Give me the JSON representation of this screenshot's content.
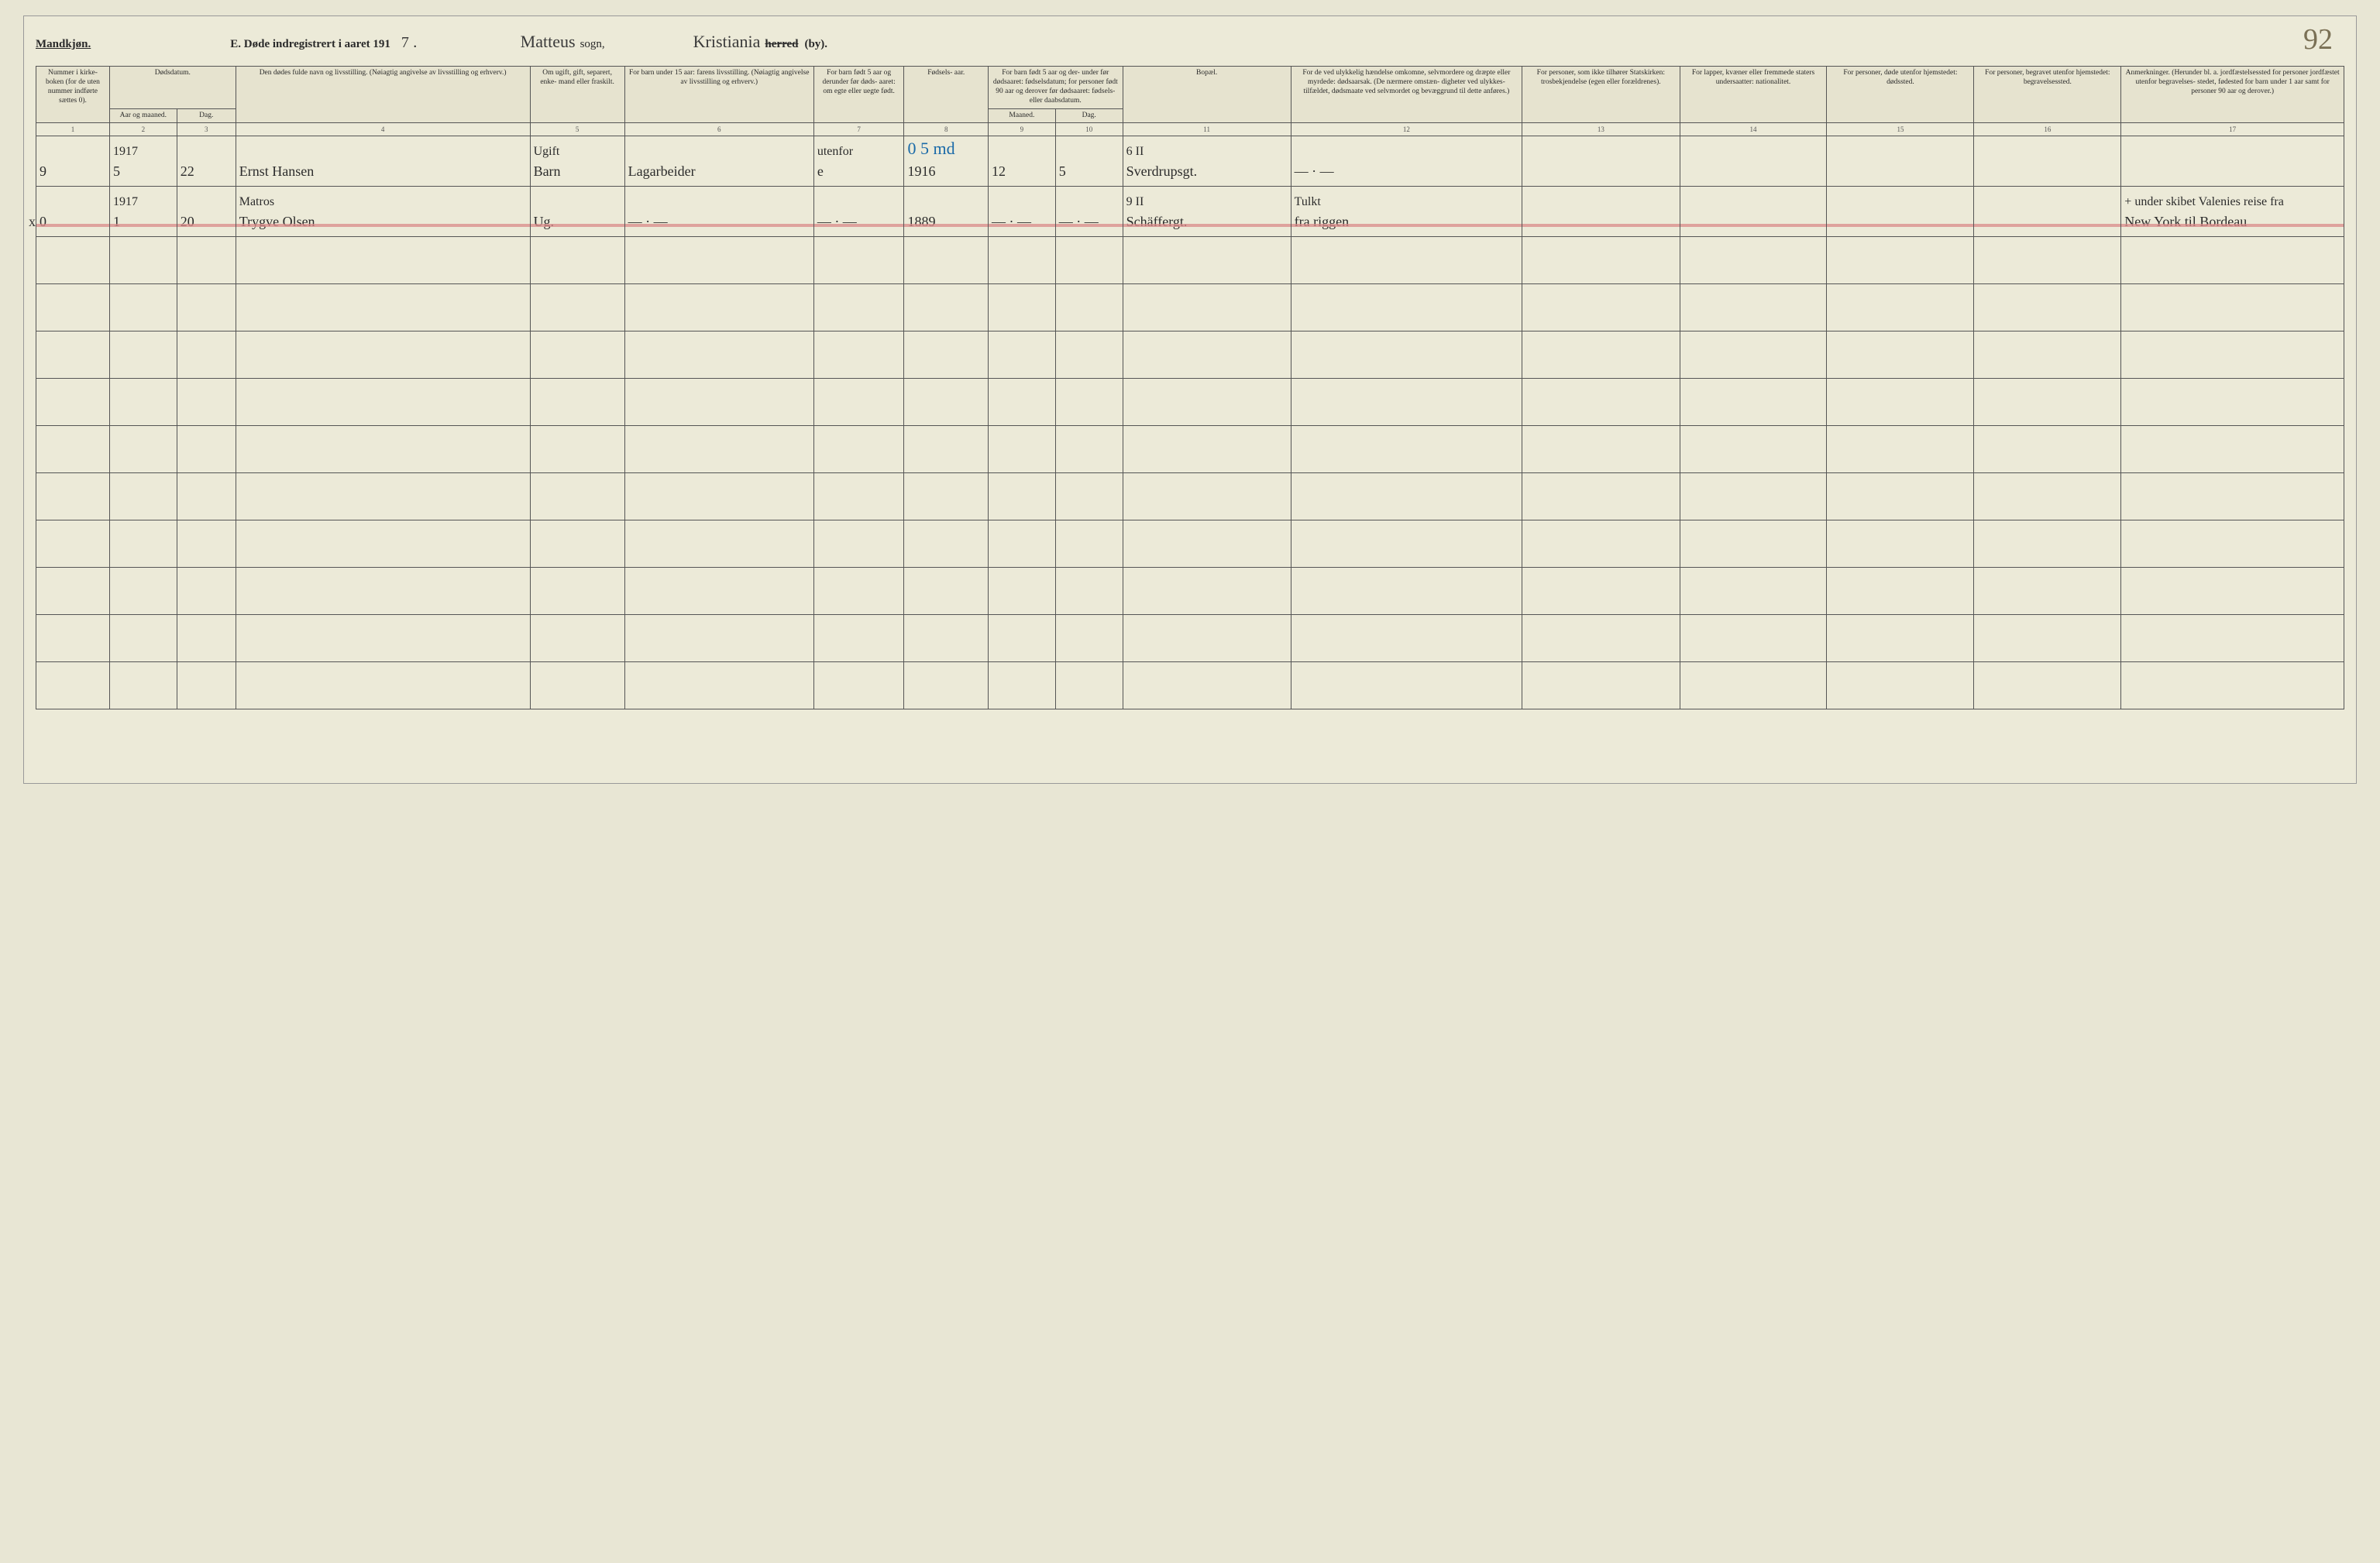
{
  "page_number": "92",
  "header": {
    "gender": "Mandkjøn.",
    "title_prefix": "E.  Døde indregistrert i aaret 191",
    "title_year_hw": "7",
    "title_dot": ".",
    "sogn_hw": "Matteus",
    "sogn_label": "sogn,",
    "by_hw": "Kristiania",
    "herred_strike": "herred",
    "by_label": "(by)."
  },
  "columns": {
    "c1": "Nummer i kirke- boken (for de uten nummer indførte sættes 0).",
    "c2_top": "Dødsdatum.",
    "c2a": "Aar og maaned.",
    "c2b": "Dag.",
    "c4": "Den dødes fulde navn og livsstilling.\n(Nøiagtig angivelse av livsstilling og erhverv.)",
    "c5": "Om ugift, gift, separert, enke- mand eller fraskilt.",
    "c6": "For barn under 15 aar:\nfarens livsstilling.\n(Nøiagtig angivelse av livsstilling og erhverv.)",
    "c7": "For barn født 5 aar og derunder før døds- aaret: om egte eller uegte født.",
    "c8": "Fødsels- aar.",
    "c9_top": "For barn født 5 aar og der- under før dødsaaret: fødselsdatum; for personer født 90 aar og derover før dødsaaret: fødsels- eller daabsdatum.",
    "c9a": "Maaned.",
    "c9b": "Dag.",
    "c11": "Bopæl.",
    "c12": "For de ved ulykkelig hændelse omkomne, selvmordere og dræpte eller myrdede: dødsaarsak.\n(De nærmere omstæn- digheter ved ulykkes- tilfældet, dødsmaate ved selvmordet og bevæggrund til dette anføres.)",
    "c13": "For personer, som ikke tilhører Statskirken:\ntrosbekjendelse (egen eller forældrenes).",
    "c14": "For lapper, kvæner eller fremmede staters undersaatter:\nnationalitet.",
    "c15": "For personer, døde utenfor hjemstedet:\ndødssted.",
    "c16": "For personer, begravet utenfor hjemstedet:\nbegravelsessted.",
    "c17": "Anmerkninger.\n(Herunder bl. a. jordfæstelsessted for personer jordfæstet utenfor begravelses- stedet, fødested for barn under 1 aar samt for personer 90 aar og derover.)"
  },
  "colnums": [
    "1",
    "2",
    "3",
    "4",
    "5",
    "6",
    "7",
    "8",
    "9",
    "10",
    "11",
    "12",
    "13",
    "14",
    "15",
    "16",
    "17"
  ],
  "rows": [
    {
      "left_x": "x",
      "upper": {
        "c2a": "1917",
        "c5": "Ugift",
        "c7": "utenfor",
        "c8_blue": "0 5 md",
        "c11": "6 II"
      },
      "lower": {
        "c1": "9",
        "c2a": "5",
        "c2b": "22",
        "c4": "Ernst Hansen",
        "c5": "Barn",
        "c6": "Lagarbeider",
        "c7": "e",
        "c8": "1916",
        "c9a": "12",
        "c9b": "5",
        "c11": "Sverdrupsgt.",
        "c12": "— · —"
      }
    },
    {
      "red": true,
      "upper": {
        "c2a": "1917",
        "c4": "Matros",
        "c11": "9 II",
        "c12": "Tulkt",
        "c17": "+ under skibet Valenies reise fra"
      },
      "lower": {
        "c1": "0",
        "c2a": "1",
        "c2b": "20",
        "c4": "Trygve Olsen",
        "c5": "Ug.",
        "c6": "— · —",
        "c7": "— · —",
        "c8": "1889",
        "c9a": "— · —",
        "c9b": "— · —",
        "c11": "Schäffergt.",
        "c12": "fra riggen",
        "c17": "New York til Bordeau"
      }
    }
  ],
  "blank_row_count": 10,
  "style": {
    "bg": "#ecead8",
    "border": "#555555",
    "ink": "#2b2b2b",
    "blue": "#1a6aa8",
    "red": "#d98a8a",
    "col_widths_pct": [
      3.5,
      3.2,
      2.8,
      14,
      4.5,
      9,
      4.3,
      4,
      3.2,
      3.2,
      8,
      11,
      7.5,
      7,
      7,
      7,
      10.6
    ]
  }
}
